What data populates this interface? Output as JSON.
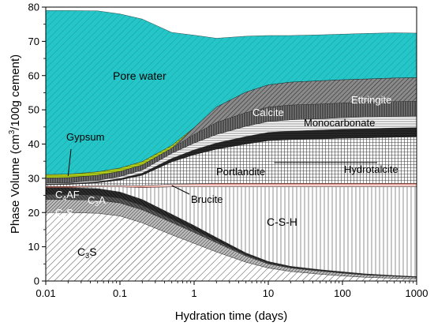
{
  "chart_data": {
    "type": "area",
    "stacked": true,
    "xlabel": "Hydration time (days)",
    "ylabel": "Phase Volume (cm3/100g cement)",
    "ylabel_parts": {
      "pre": "Phase Volume (cm",
      "sup": "3",
      "post": "/100g cement)"
    },
    "x_scale": "log",
    "xlim": [
      0.01,
      1000
    ],
    "ylim": [
      0,
      80
    ],
    "x_ticks": [
      0.01,
      0.1,
      1,
      10,
      100,
      1000
    ],
    "x_tick_labels": [
      "0.01",
      "0.1",
      "1",
      "10",
      "100",
      "1000"
    ],
    "y_ticks": [
      0,
      10,
      20,
      30,
      40,
      50,
      60,
      70,
      80
    ],
    "y_tick_labels": [
      "0",
      "10",
      "20",
      "30",
      "40",
      "50",
      "60",
      "70",
      "80"
    ],
    "grid": false,
    "x": [
      0.01,
      0.02,
      0.05,
      0.1,
      0.2,
      0.5,
      1,
      2,
      5,
      10,
      20,
      50,
      100,
      200,
      500,
      1000
    ],
    "series": [
      {
        "key": "C3S",
        "values": [
          20.0,
          20.0,
          19.8,
          19.0,
          17.0,
          13.5,
          11.0,
          8.5,
          5.5,
          3.8,
          2.8,
          2.0,
          1.5,
          1.1,
          0.8,
          0.6
        ]
      },
      {
        "key": "C2S",
        "values": [
          3.8,
          3.8,
          3.8,
          3.8,
          3.8,
          3.6,
          3.2,
          2.7,
          1.8,
          1.2,
          1.0,
          0.9,
          0.8,
          0.7,
          0.6,
          0.5
        ]
      },
      {
        "key": "C3A",
        "values": [
          1.5,
          1.5,
          1.5,
          1.4,
          1.3,
          1.0,
          0.8,
          0.6,
          0.4,
          0.3,
          0.2,
          0.2,
          0.2,
          0.1,
          0.1,
          0.1
        ]
      },
      {
        "key": "C4AF",
        "values": [
          1.9,
          1.9,
          1.9,
          1.8,
          1.7,
          1.4,
          1.2,
          0.9,
          0.5,
          0.4,
          0.3,
          0.2,
          0.2,
          0.2,
          0.1,
          0.1
        ]
      },
      {
        "key": "C-S-H",
        "values": [
          0.1,
          0.1,
          0.5,
          1.5,
          3.5,
          8.0,
          11.3,
          14.8,
          19.3,
          21.8,
          23.2,
          24.2,
          24.8,
          25.4,
          25.9,
          26.2
        ]
      },
      {
        "key": "Brucite",
        "values": [
          0.3,
          0.3,
          0.4,
          0.5,
          0.6,
          0.8,
          0.9,
          1.0,
          1.0,
          1.0,
          1.0,
          1.0,
          1.0,
          1.0,
          1.0,
          1.0
        ]
      },
      {
        "key": "Portlandite",
        "values": [
          0.5,
          0.6,
          0.8,
          1.5,
          3.0,
          6.5,
          8.5,
          10.0,
          11.5,
          12.5,
          12.8,
          13.0,
          13.2,
          13.3,
          13.5,
          13.6
        ]
      },
      {
        "key": "Hydrotalcite",
        "values": [
          0.2,
          0.2,
          0.3,
          0.4,
          0.6,
          1.0,
          1.4,
          1.8,
          2.2,
          2.4,
          2.5,
          2.6,
          2.6,
          2.7,
          2.7,
          2.7
        ]
      },
      {
        "key": "Monocarbonate",
        "values": [
          0.3,
          0.3,
          0.4,
          0.6,
          0.9,
          1.5,
          2.0,
          2.5,
          3.0,
          3.2,
          3.3,
          3.3,
          3.4,
          3.4,
          3.4,
          3.4
        ]
      },
      {
        "key": "Calcite",
        "values": [
          1.5,
          1.5,
          1.5,
          1.5,
          1.5,
          1.5,
          2.5,
          3.5,
          4.0,
          4.2,
          4.3,
          4.3,
          4.3,
          4.3,
          4.3,
          4.3
        ]
      },
      {
        "key": "Ettringite",
        "values": [
          0.0,
          0.0,
          0.0,
          0.0,
          0.0,
          0.0,
          2.0,
          4.5,
          6.0,
          6.5,
          6.7,
          6.8,
          6.8,
          6.8,
          6.9,
          6.9
        ]
      },
      {
        "key": "Gypsum",
        "values": [
          1.0,
          1.0,
          1.0,
          1.0,
          1.0,
          0.8,
          0.0,
          0.0,
          0.0,
          0.0,
          0.0,
          0.0,
          0.0,
          0.0,
          0.0,
          0.0
        ]
      },
      {
        "key": "Pore water",
        "values": [
          47.9,
          47.8,
          47.0,
          45.0,
          41.6,
          33.0,
          27.0,
          20.1,
          16.3,
          14.4,
          13.6,
          13.4,
          13.3,
          13.3,
          13.2,
          13.0
        ]
      }
    ],
    "annotations": [
      {
        "key": "Pore water",
        "text": "Pore water"
      },
      {
        "key": "Gypsum",
        "text": "Gypsum"
      },
      {
        "key": "Calcite",
        "text": "Calcite"
      },
      {
        "key": "Ettringite",
        "text": "Ettringite"
      },
      {
        "key": "Monocarbonate",
        "text": "Monocarbonate"
      },
      {
        "key": "Portlandite",
        "text": "Portlandite"
      },
      {
        "key": "Hydrotalcite",
        "text": "Hydrotalcite"
      },
      {
        "key": "Brucite",
        "text": "Brucite"
      },
      {
        "key": "C-S-H",
        "text": "C-S-H"
      },
      {
        "key": "C4AF",
        "text": "C",
        "sub": "4",
        "after": "AF"
      },
      {
        "key": "C3A",
        "text": "C",
        "sub": "3",
        "after": "A"
      },
      {
        "key": "C2S",
        "text": "C",
        "sub": "2",
        "after": "S"
      },
      {
        "key": "C3S",
        "text": "C",
        "sub": "3",
        "after": "S"
      }
    ],
    "colors": {
      "pore_water": "#25c6c8",
      "gypsum": "#b5d31d",
      "brucite": "#d63b2b",
      "dark": "#3c3c3c",
      "light": "#ffffff"
    }
  }
}
